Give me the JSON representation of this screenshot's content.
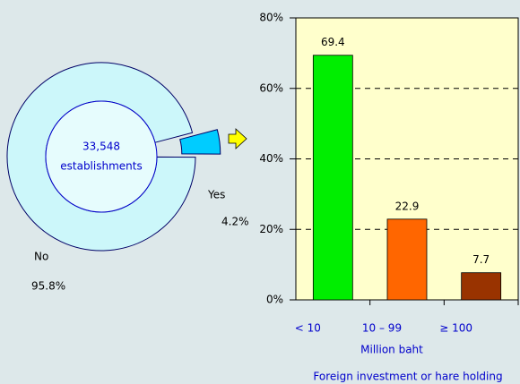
{
  "chart_data": [
    {
      "type": "pie",
      "categories": [
        "Yes",
        "No"
      ],
      "values": [
        4.2,
        95.8
      ],
      "value_labels": [
        "4.2%",
        "95.8%"
      ],
      "colors": [
        "#00ccff",
        "#ccf7fa"
      ],
      "annotations": [
        "33,548",
        "establishments"
      ]
    },
    {
      "type": "bar",
      "title": "Foreign investment or hare holding",
      "xlabel": "Million baht",
      "categories": [
        "< 10",
        "10 – 99",
        "≥ 100"
      ],
      "values": [
        69.4,
        22.9,
        7.7
      ],
      "colors": [
        "#00ee00",
        "#ff6600",
        "#993300"
      ],
      "ylim": [
        0,
        80
      ],
      "yticks": [
        {
          "value": 0,
          "label": "0%"
        },
        {
          "value": 20,
          "label": "20%"
        },
        {
          "value": 40,
          "label": "40%"
        },
        {
          "value": 60,
          "label": "60%"
        },
        {
          "value": 80,
          "label": "80%"
        }
      ],
      "grid": true
    }
  ]
}
